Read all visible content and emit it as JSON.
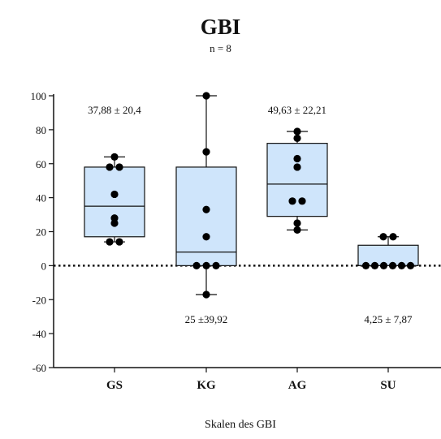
{
  "chart_data": {
    "type": "box",
    "title": "GBI",
    "subtitle": "n = 8",
    "xlabel": "Skalen des GBI",
    "ylabel": "",
    "ylim": [
      -60,
      100
    ],
    "yticks": [
      100,
      80,
      60,
      40,
      20,
      0,
      -20,
      -40,
      -60
    ],
    "grid": false,
    "reference_line": 0,
    "box_fill": "#cfe5fb",
    "categories": [
      "GS",
      "KG",
      "AG",
      "SU"
    ],
    "boxes": [
      {
        "category": "GS",
        "min": 14,
        "q1": 17,
        "median": 35,
        "q3": 58,
        "max": 64,
        "points": [
          64,
          58,
          58,
          42,
          28,
          25,
          14,
          14
        ],
        "annotation": "37,88 ± 20,4"
      },
      {
        "category": "KG",
        "min": -17,
        "q1": 0,
        "median": 8,
        "q3": 58,
        "max": 100,
        "points": [
          100,
          67,
          33,
          17,
          0,
          0,
          0,
          -17
        ],
        "annotation": "25 ±39,92"
      },
      {
        "category": "AG",
        "min": 21,
        "q1": 29,
        "median": 48,
        "q3": 72,
        "max": 79,
        "points": [
          79,
          75,
          63,
          58,
          38,
          38,
          25,
          21
        ],
        "annotation": "49,63 ± 22,21"
      },
      {
        "category": "SU",
        "min": 0,
        "q1": 0,
        "median": 0,
        "q3": 12,
        "max": 17,
        "points": [
          17,
          17,
          0,
          0,
          0,
          0,
          0,
          0
        ],
        "annotation": "4,25  ± 7,87"
      }
    ]
  }
}
